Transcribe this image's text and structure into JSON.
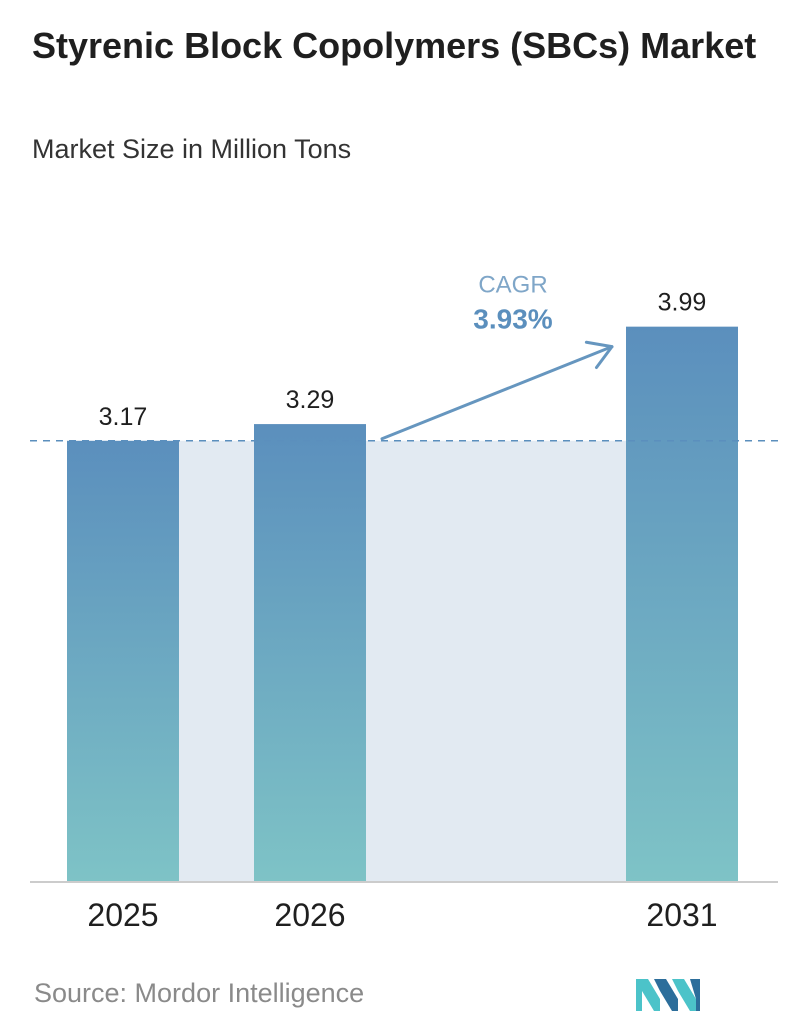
{
  "header": {
    "title": "Styrenic Block Copolymers (SBCs) Market",
    "subtitle": "Market Size in Million Tons"
  },
  "cagr": {
    "label": "CAGR",
    "value": "3.93%"
  },
  "footer": {
    "source": "Source:  Mordor Intelligence"
  },
  "logo": {
    "icon": "mordor-intelligence-logo"
  },
  "colors": {
    "bar_top": "#5b8fbd",
    "bar_bottom": "#7ec3c6",
    "band": "#e2eaf2",
    "cagr_label": "#7fa6c8",
    "cagr_value": "#5b8fbd",
    "arrow": "#6696bf",
    "reference_line": "#5b8fbd",
    "axis": "#cccccc"
  },
  "chart_data": {
    "type": "bar",
    "categories": [
      "2025",
      "2026",
      "2031"
    ],
    "values": [
      3.17,
      3.29,
      3.99
    ],
    "value_labels": [
      "3.17",
      "3.29",
      "3.99"
    ],
    "title": "Styrenic Block Copolymers (SBCs) Market",
    "subtitle": "Market Size in Million Tons",
    "xlabel": "",
    "ylabel": "",
    "ylim": [
      0,
      4.9
    ],
    "grid": false,
    "legend": "none",
    "reference_line": {
      "value": 3.17,
      "style": "dashed"
    },
    "annotation": {
      "text": "CAGR",
      "value": "3.93%",
      "from": "2026",
      "to": "2031"
    }
  }
}
